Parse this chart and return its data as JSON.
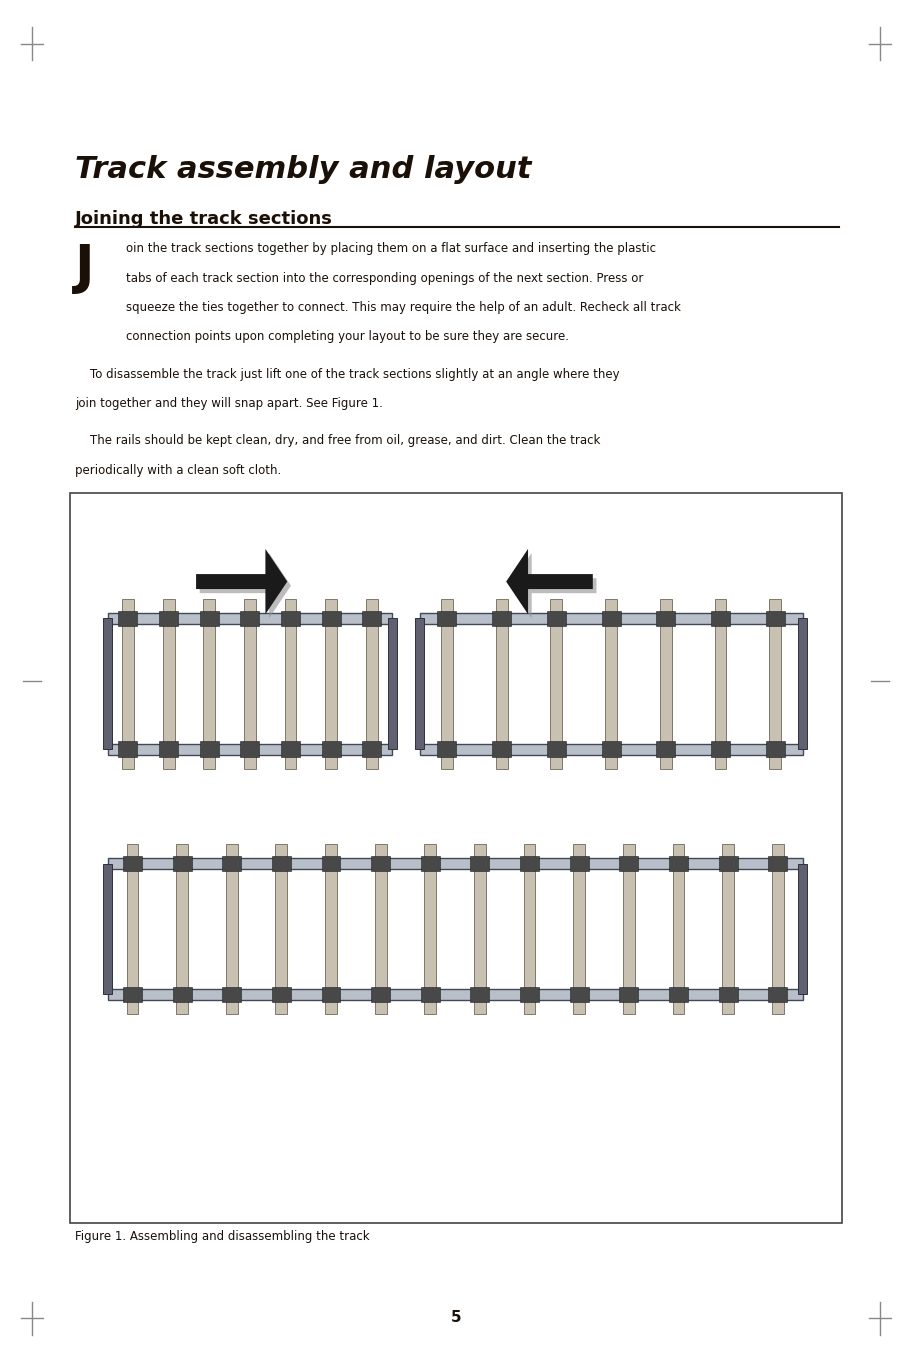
{
  "title": "Track assembly and layout",
  "section_heading": "Joining the track sections",
  "p1_lines": [
    "oin the track sections together by placing them on a flat surface and inserting the plastic",
    "tabs of each track section into the corresponding openings of the next section. Press or",
    "squeeze the ties together to connect. This may require the help of an adult. Recheck all track",
    "connection points upon completing your layout to be sure they are secure."
  ],
  "p2_lines": [
    "    To disassemble the track just lift one of the track sections slightly at an angle where they",
    "join together and they will snap apart. See Figure 1."
  ],
  "p3_lines": [
    "    The rails should be kept clean, dry, and free from oil, grease, and dirt. Clean the track",
    "periodically with a clean soft cloth."
  ],
  "figure_caption": "Figure 1. Assembling and disassembling the track",
  "page_number": "5",
  "bg_color": "#ffffff",
  "text_color": "#1a1008",
  "tick_color": "#888888",
  "heading_underline_color": "#1a1008",
  "fig_box_edge": "#444444",
  "rail_color": "#b8bfc8",
  "tie_color": "#c8c0b0",
  "tie_edge": "#706858",
  "clip_color": "#484848",
  "arrow_color": "#1a1a1a",
  "arrow_shadow": "#909090"
}
